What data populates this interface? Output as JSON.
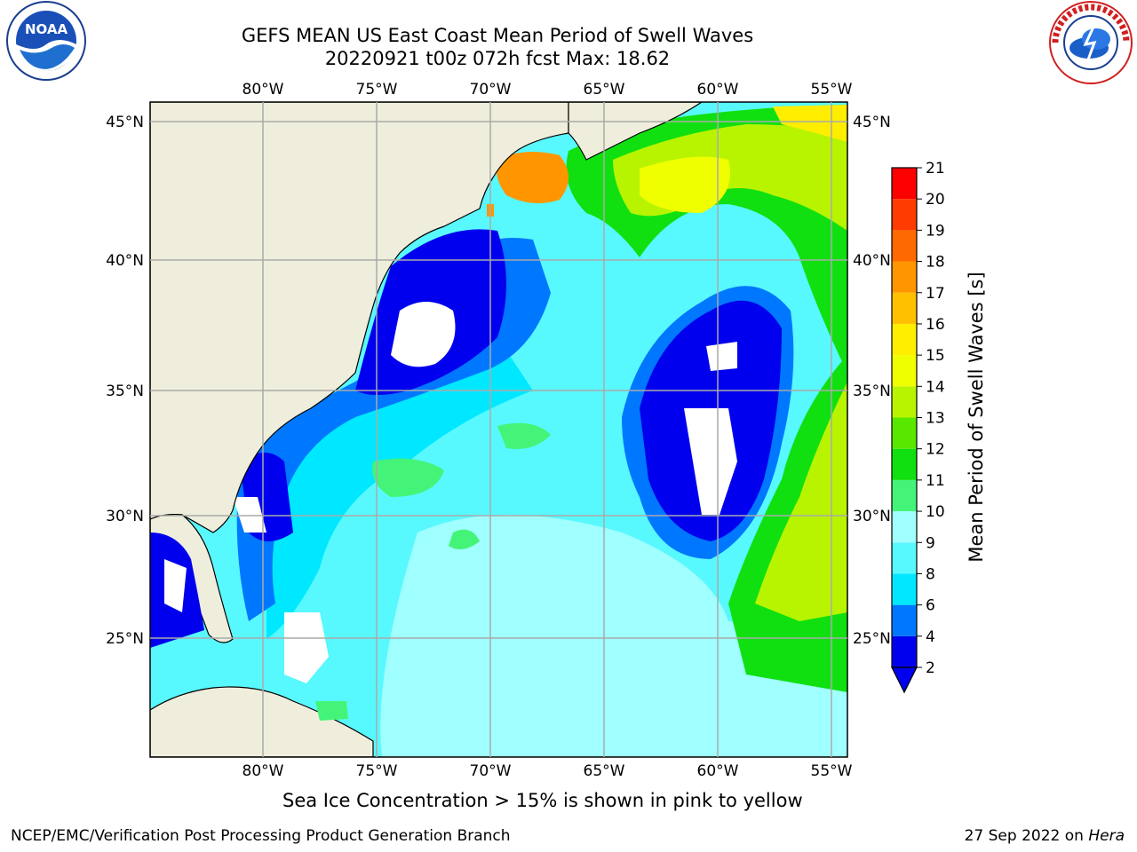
{
  "title": {
    "line1": "GEFS MEAN US East Coast Mean Period of Swell Waves",
    "line2": "20220921 t00z 072h fcst   Max: 18.62"
  },
  "map": {
    "lon_ticks": [
      "80°W",
      "75°W",
      "70°W",
      "65°W",
      "60°W",
      "55°W"
    ],
    "lat_ticks": [
      "45°N",
      "40°N",
      "35°N",
      "30°N",
      "25°N"
    ]
  },
  "colorbar": {
    "label": "Mean Period of Swell Waves [s]",
    "ticks": [
      "2",
      "4",
      "6",
      "8",
      "9",
      "10",
      "11",
      "12",
      "13",
      "14",
      "15",
      "16",
      "17",
      "18",
      "19",
      "20",
      "21"
    ],
    "colors": [
      "#0000ee",
      "#0077ff",
      "#00e8ff",
      "#58f8ff",
      "#a0ffff",
      "#44f478",
      "#10e010",
      "#58e800",
      "#b8f400",
      "#f0ff00",
      "#ffee00",
      "#ffc000",
      "#ff9600",
      "#ff6a00",
      "#ff3c00",
      "#ff0000"
    ],
    "extend_color": "#0000ee"
  },
  "caption": "Sea Ice Concentration > 15% is shown in pink to yellow",
  "footer": {
    "branch": "NCEP/EMC/Verification Post Processing Product Generation Branch",
    "date": "27 Sep 2022 on",
    "machine": "Hera"
  },
  "logos": {
    "left": "noaa-logo",
    "right": "nws-logo"
  }
}
